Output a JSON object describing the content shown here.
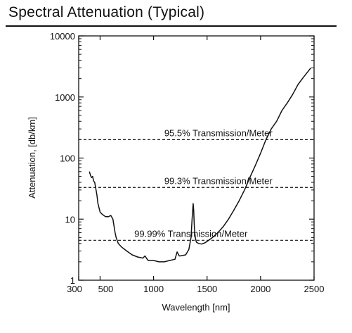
{
  "header": {
    "title": "Spectral Attenuation (Typical)"
  },
  "chart_data": {
    "type": "line",
    "title": "Spectral Attenuation (Typical)",
    "xlabel": "Wavelength [nm]",
    "ylabel": "Attenuation, [db/km]",
    "x_scale": "linear",
    "y_scale": "log",
    "xlim": [
      300,
      2500
    ],
    "ylim": [
      1,
      10000
    ],
    "grid": false,
    "x_ticks": [
      300,
      500,
      1000,
      1500,
      2000,
      2500
    ],
    "x_tick_labels": [
      "300",
      "500",
      "1000",
      "1500",
      "2000",
      "2500"
    ],
    "y_ticks": [
      1,
      10,
      100,
      1000,
      10000
    ],
    "y_tick_labels": [
      "1",
      "10",
      "100",
      "1000",
      "10000"
    ],
    "series": [
      {
        "x": [
          400,
          410,
          420,
          430,
          440,
          450,
          470,
          480,
          500,
          520,
          550,
          580,
          600,
          620,
          640,
          650,
          670,
          700,
          750,
          800,
          850,
          900,
          920,
          940,
          950,
          1000,
          1050,
          1100,
          1150,
          1200,
          1220,
          1240,
          1250,
          1300,
          1330,
          1350,
          1360,
          1370,
          1375,
          1380,
          1385,
          1390,
          1400,
          1420,
          1450,
          1480,
          1500,
          1550,
          1600,
          1650,
          1700,
          1750,
          1800,
          1850,
          1900,
          1950,
          2000,
          2050,
          2100,
          2150,
          2200,
          2250,
          2300,
          2350,
          2400,
          2450,
          2470
        ],
        "y": [
          60,
          52,
          48,
          50,
          42,
          40,
          25,
          18,
          13,
          12,
          11,
          11,
          11.5,
          10,
          6,
          5,
          4,
          3.5,
          3,
          2.6,
          2.4,
          2.3,
          2.5,
          2.2,
          2.1,
          2.1,
          2.0,
          2.0,
          2.1,
          2.2,
          2.9,
          2.5,
          2.5,
          2.6,
          3.2,
          5,
          10,
          18,
          14,
          8,
          6,
          5,
          4.2,
          4.0,
          3.9,
          4.1,
          4.3,
          5,
          6,
          7.5,
          10,
          14,
          20,
          30,
          48,
          75,
          120,
          200,
          300,
          400,
          600,
          800,
          1100,
          1600,
          2100,
          2700,
          3000
        ]
      }
    ],
    "reference_lines": [
      {
        "y": 200,
        "label": "95.5% Transmission/Meter",
        "label_x": 1100
      },
      {
        "y": 33,
        "label": "99.3% Transmission/Meter",
        "label_x": 1100
      },
      {
        "y": 4.5,
        "label": "99.99% Transmission/Meter",
        "label_x": 820
      }
    ]
  }
}
